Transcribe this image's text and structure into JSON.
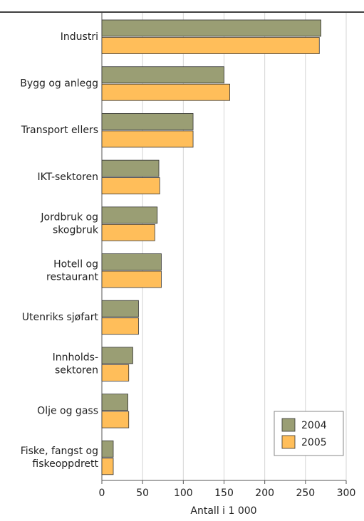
{
  "chart_data": {
    "type": "bar",
    "orientation": "horizontal",
    "x_label": "Antall i 1 000",
    "categories": [
      "Industri",
      "Bygg og anlegg",
      "Transport ellers",
      "IKT-sektoren",
      "Jordbruk og\nskogbruk",
      "Hotell og\nrestaurant",
      "Utenriks sjøfart",
      "Innholds-\nsektoren",
      "Olje og gass",
      "Fiske, fangst og\nfiskeoppdrett"
    ],
    "series": [
      {
        "name": "2004",
        "color": "#9a9e74",
        "values": [
          269,
          150,
          112,
          70,
          68,
          73,
          45,
          38,
          32,
          14
        ]
      },
      {
        "name": "2005",
        "color": "#ffbe5a",
        "values": [
          267,
          157,
          112,
          71,
          65,
          73,
          45,
          33,
          33,
          14
        ]
      }
    ],
    "xlim": [
      0,
      300
    ],
    "xticks": [
      0,
      50,
      100,
      150,
      200,
      250,
      300
    ],
    "grid": true,
    "legend": "lower right"
  }
}
